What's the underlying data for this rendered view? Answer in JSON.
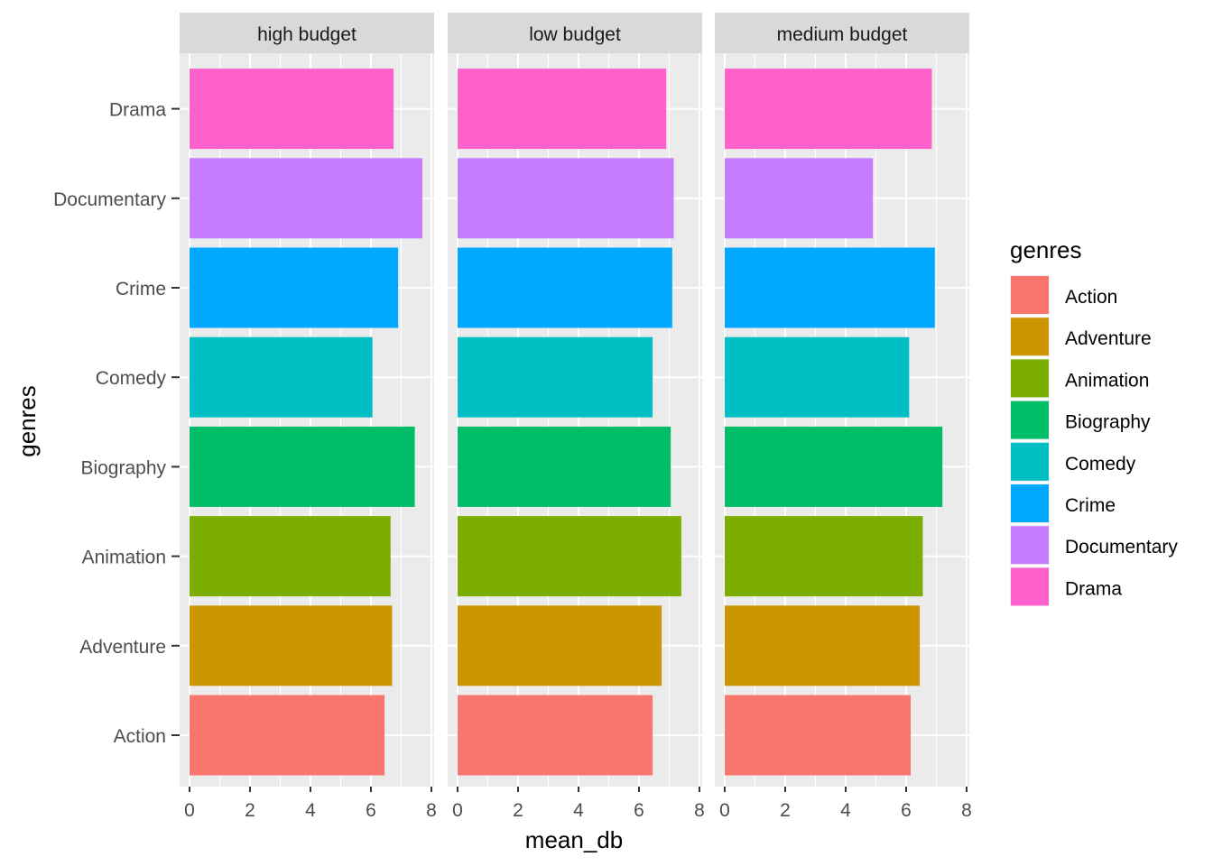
{
  "chart_data": {
    "type": "bar",
    "orientation": "horizontal",
    "facet_by": "budget",
    "xlabel": "mean_db",
    "ylabel": "genres",
    "xlim": [
      0,
      8
    ],
    "x_ticks": [
      0,
      2,
      4,
      6,
      8
    ],
    "grid": true,
    "legend": {
      "title": "genres",
      "position": "right"
    },
    "categories": [
      "Action",
      "Adventure",
      "Animation",
      "Biography",
      "Comedy",
      "Crime",
      "Documentary",
      "Drama"
    ],
    "colors": {
      "Action": "#F8766D",
      "Adventure": "#CD9600",
      "Animation": "#7CAE00",
      "Biography": "#00BE67",
      "Comedy": "#00BFC4",
      "Crime": "#00A9FF",
      "Documentary": "#C77CFF",
      "Drama": "#FF61CC"
    },
    "facets": [
      {
        "name": "high budget",
        "values": [
          6.45,
          6.7,
          6.65,
          7.45,
          6.05,
          6.9,
          7.7,
          6.75
        ]
      },
      {
        "name": "low budget",
        "values": [
          6.45,
          6.75,
          7.4,
          7.05,
          6.45,
          7.1,
          7.15,
          6.9
        ]
      },
      {
        "name": "medium budget",
        "values": [
          6.15,
          6.45,
          6.55,
          7.2,
          6.1,
          6.95,
          4.9,
          6.85
        ]
      }
    ]
  }
}
